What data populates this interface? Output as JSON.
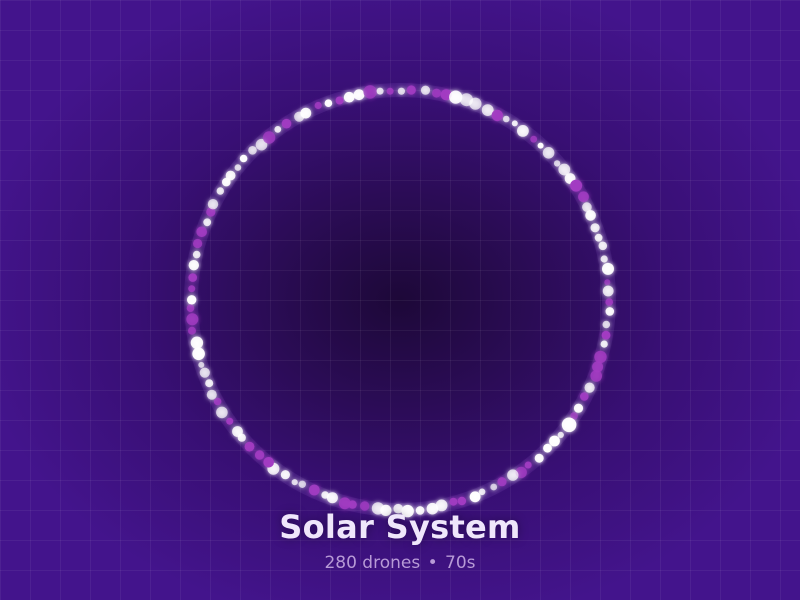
{
  "show": {
    "title": "Solar System",
    "drone_count": "280 drones",
    "separator": "•",
    "duration": "70s"
  },
  "colors": {
    "background_center": "#1d0838",
    "background_edge": "#43148c",
    "drone_white": "#ffffff",
    "drone_magenta": "#a23bc2",
    "title": "#efe6fb",
    "meta": "#b79ad6"
  },
  "formation": {
    "shape": "ring",
    "visible_drones": 120
  }
}
